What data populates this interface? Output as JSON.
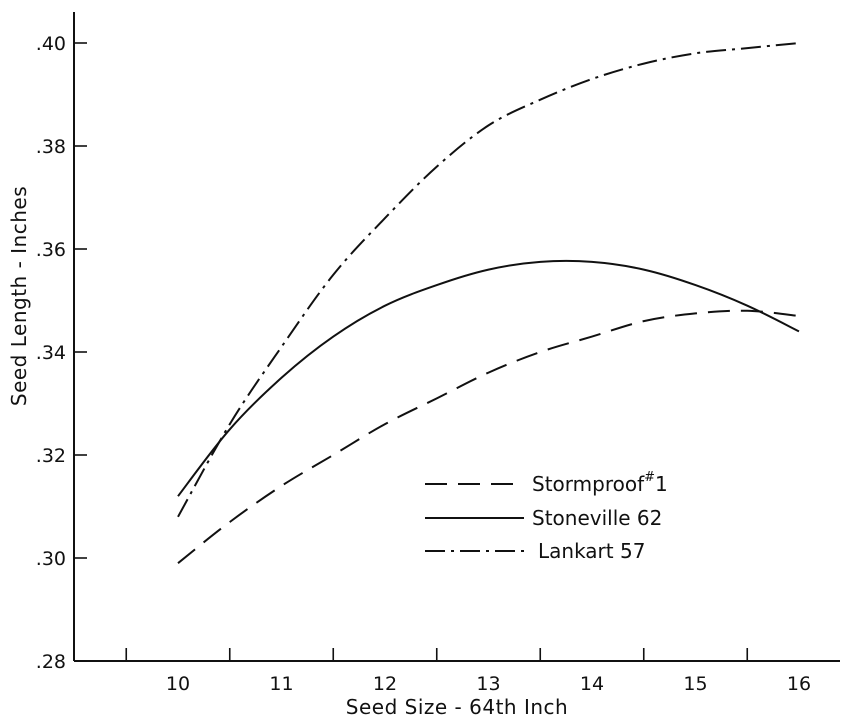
{
  "chart_data": {
    "type": "line",
    "title": "",
    "xlabel": "Seed Size - 64th Inch",
    "ylabel": "Seed Length - Inches",
    "xlim": [
      9,
      17
    ],
    "ylim": [
      0.28,
      0.4
    ],
    "x_ticks": [
      10,
      11,
      12,
      13,
      14,
      15,
      16
    ],
    "x_tick_labels": [
      "10",
      "11",
      "12",
      "13",
      "14",
      "15",
      "16"
    ],
    "y_ticks": [
      0.28,
      0.3,
      0.32,
      0.34,
      0.36,
      0.38,
      0.4
    ],
    "y_tick_labels": [
      ".28",
      ".30",
      ".32",
      ".34",
      ".36",
      ".38",
      ".40"
    ],
    "grid": false,
    "legend_position": "center-right",
    "series": [
      {
        "name": "Stormproof #1",
        "label_main": "Stormproof",
        "label_super": "#",
        "label_suffix": "1",
        "style": "dashed",
        "x": [
          10,
          10.5,
          11,
          11.5,
          12,
          12.5,
          13,
          13.5,
          14,
          14.5,
          15,
          15.5,
          16
        ],
        "y": [
          0.299,
          0.307,
          0.314,
          0.32,
          0.326,
          0.331,
          0.336,
          0.34,
          0.343,
          0.346,
          0.3475,
          0.348,
          0.347
        ]
      },
      {
        "name": "Stoneville 62",
        "style": "solid",
        "x": [
          10,
          10.5,
          11,
          11.5,
          12,
          12.5,
          13,
          13.5,
          14,
          14.5,
          15,
          15.5,
          16
        ],
        "y": [
          0.312,
          0.325,
          0.335,
          0.343,
          0.349,
          0.353,
          0.356,
          0.3575,
          0.3575,
          0.356,
          0.353,
          0.349,
          0.344
        ]
      },
      {
        "name": "Lankart 57",
        "style": "dashdot",
        "x": [
          10,
          10.5,
          11,
          11.5,
          12,
          12.5,
          13,
          13.5,
          14,
          14.5,
          15,
          15.5,
          16
        ],
        "y": [
          0.308,
          0.326,
          0.341,
          0.355,
          0.366,
          0.376,
          0.384,
          0.389,
          0.393,
          0.396,
          0.398,
          0.399,
          0.4
        ]
      }
    ]
  }
}
